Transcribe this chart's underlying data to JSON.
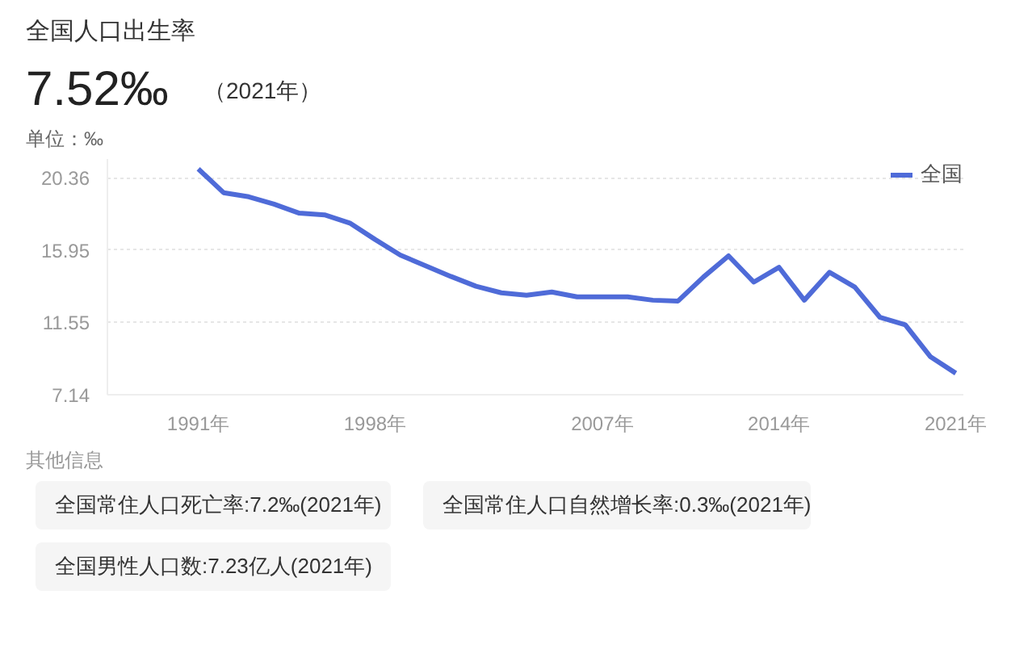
{
  "chart_data": {
    "type": "line",
    "title": "全国人口出生率",
    "ylabel": "单位：‰",
    "annotations": [
      "7.52‰",
      "（2021年）",
      "其他信息",
      "全国常住人口死亡率:7.2‰(2021年)",
      "全国常住人口自然增长率:0.3‰(2021年)",
      "全国男性人口数:7.23亿人(2021年)"
    ],
    "x": [
      1991,
      1992,
      1993,
      1994,
      1995,
      1996,
      1997,
      1998,
      1999,
      2000,
      2001,
      2002,
      2003,
      2004,
      2005,
      2006,
      2007,
      2008,
      2009,
      2010,
      2011,
      2012,
      2013,
      2014,
      2015,
      2016,
      2017,
      2018,
      2019,
      2020,
      2021
    ],
    "series": [
      {
        "name": "全国",
        "color": "#4f6bd8",
        "values": [
          20.9,
          19.45,
          19.2,
          18.75,
          18.2,
          18.1,
          17.6,
          16.6,
          15.65,
          15.0,
          14.35,
          13.75,
          13.35,
          13.2,
          13.4,
          13.1,
          13.1,
          13.1,
          12.9,
          12.85,
          14.3,
          15.6,
          14.0,
          14.9,
          12.9,
          14.6,
          13.7,
          11.85,
          11.4,
          9.45,
          8.45
        ]
      }
    ],
    "xlim": [
      1987.4,
      2021.3
    ],
    "ylim": [
      7.14,
      21.5
    ],
    "xticks": [
      {
        "value": 1991,
        "label": "1991年"
      },
      {
        "value": 1998,
        "label": "1998年"
      },
      {
        "value": 2007,
        "label": "2007年"
      },
      {
        "value": 2014,
        "label": "2014年"
      },
      {
        "value": 2021,
        "label": "2021年"
      }
    ],
    "yticks": [
      7.14,
      11.55,
      15.95,
      20.36
    ],
    "grid": "y",
    "legend": "top right",
    "line_style": "solid"
  }
}
